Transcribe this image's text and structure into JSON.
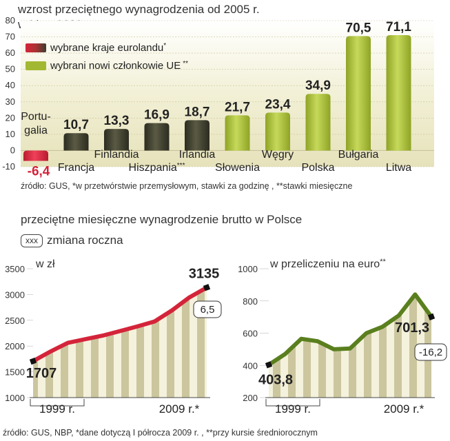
{
  "top_chart": {
    "title_line1": "wzrost przeciętnego wynagrodzenia od 2005 r.",
    "title_line2": "w I kw. 2009 r.",
    "source": "źródło: GUS, *w przetwórstwie przemysłowym, stawki za godzinę , **stawki miesięczne",
    "legend": [
      {
        "label": "wybrane kraje eurolandu",
        "mark": "*"
      },
      {
        "label": "wybrani nowi członkowie UE",
        "mark": "**"
      }
    ]
  },
  "bottom": {
    "title": "przeciętne miesięczne wynagrodzenie brutto w Polsce",
    "legend_box": "xxx",
    "legend_text": "zmiana roczna",
    "source": "źródło: GUS, NBP, *dane dotyczą I półrocza 2009 r. , **przy kursie średniorocznym"
  },
  "chart_data": [
    {
      "type": "bar",
      "categories": [
        "Portugalia",
        "Francja",
        "Finlandia",
        "Hiszpania",
        "Irlandia",
        "Słowenia",
        "Węgry",
        "Polska",
        "Bułgaria",
        "Litwa"
      ],
      "category_labels": [
        "Portu-\ngalia",
        "Francja",
        "Finlandia",
        "Hiszpania",
        "Irlandia",
        "Słowenia",
        "Węgry",
        "Polska",
        "Bułgaria",
        "Litwa"
      ],
      "category_marks": [
        "",
        "",
        "",
        "***",
        "",
        "",
        "",
        "",
        "",
        ""
      ],
      "group": [
        "euro",
        "euro",
        "euro",
        "euro",
        "euro",
        "new",
        "new",
        "new",
        "new",
        "new"
      ],
      "values": [
        -6.4,
        10.7,
        13.3,
        16.9,
        18.7,
        21.7,
        23.4,
        34.9,
        70.5,
        71.1
      ],
      "value_labels": [
        "-6,4",
        "10,7",
        "13,3",
        "16,9",
        "18,7",
        "21,7",
        "23,4",
        "34,9",
        "70,5",
        "71,1"
      ],
      "ylim": [
        -10,
        80
      ],
      "yticks": [
        -10,
        0,
        10,
        20,
        30,
        40,
        50,
        60,
        70,
        80
      ],
      "colors": {
        "euro": "#3d3d2e",
        "new": "#a3b832",
        "negative": "#d4243a"
      }
    },
    {
      "type": "area",
      "title": "w zł",
      "ylim": [
        1000,
        3500
      ],
      "yticks": [
        1000,
        1500,
        2000,
        2500,
        3000,
        3500
      ],
      "xlabels": [
        "1999 r.",
        "2009 r.*"
      ],
      "x": [
        1999,
        2000,
        2001,
        2002,
        2003,
        2004,
        2005,
        2006,
        2007,
        2008,
        2009
      ],
      "values": [
        1707,
        1894,
        2062,
        2133,
        2202,
        2290,
        2380,
        2478,
        2692,
        2944,
        3135
      ],
      "start_label": "1707",
      "end_label": "3135",
      "change_label": "6,5",
      "color": "#d4243a"
    },
    {
      "type": "area",
      "title": "w przeliczeniu na euro",
      "title_mark": "**",
      "ylim": [
        200,
        1000
      ],
      "yticks": [
        200,
        400,
        600,
        800,
        1000
      ],
      "xlabels": [
        "1999 r.",
        "2009 r.*"
      ],
      "x": [
        1999,
        2000,
        2001,
        2002,
        2003,
        2004,
        2005,
        2006,
        2007,
        2008,
        2009
      ],
      "values": [
        403.8,
        470,
        565,
        550,
        500,
        505,
        600,
        640,
        710,
        840,
        701.3
      ],
      "start_label": "403,8",
      "end_label": "701,3",
      "change_label": "-16,2",
      "color": "#5a7f1e"
    }
  ]
}
